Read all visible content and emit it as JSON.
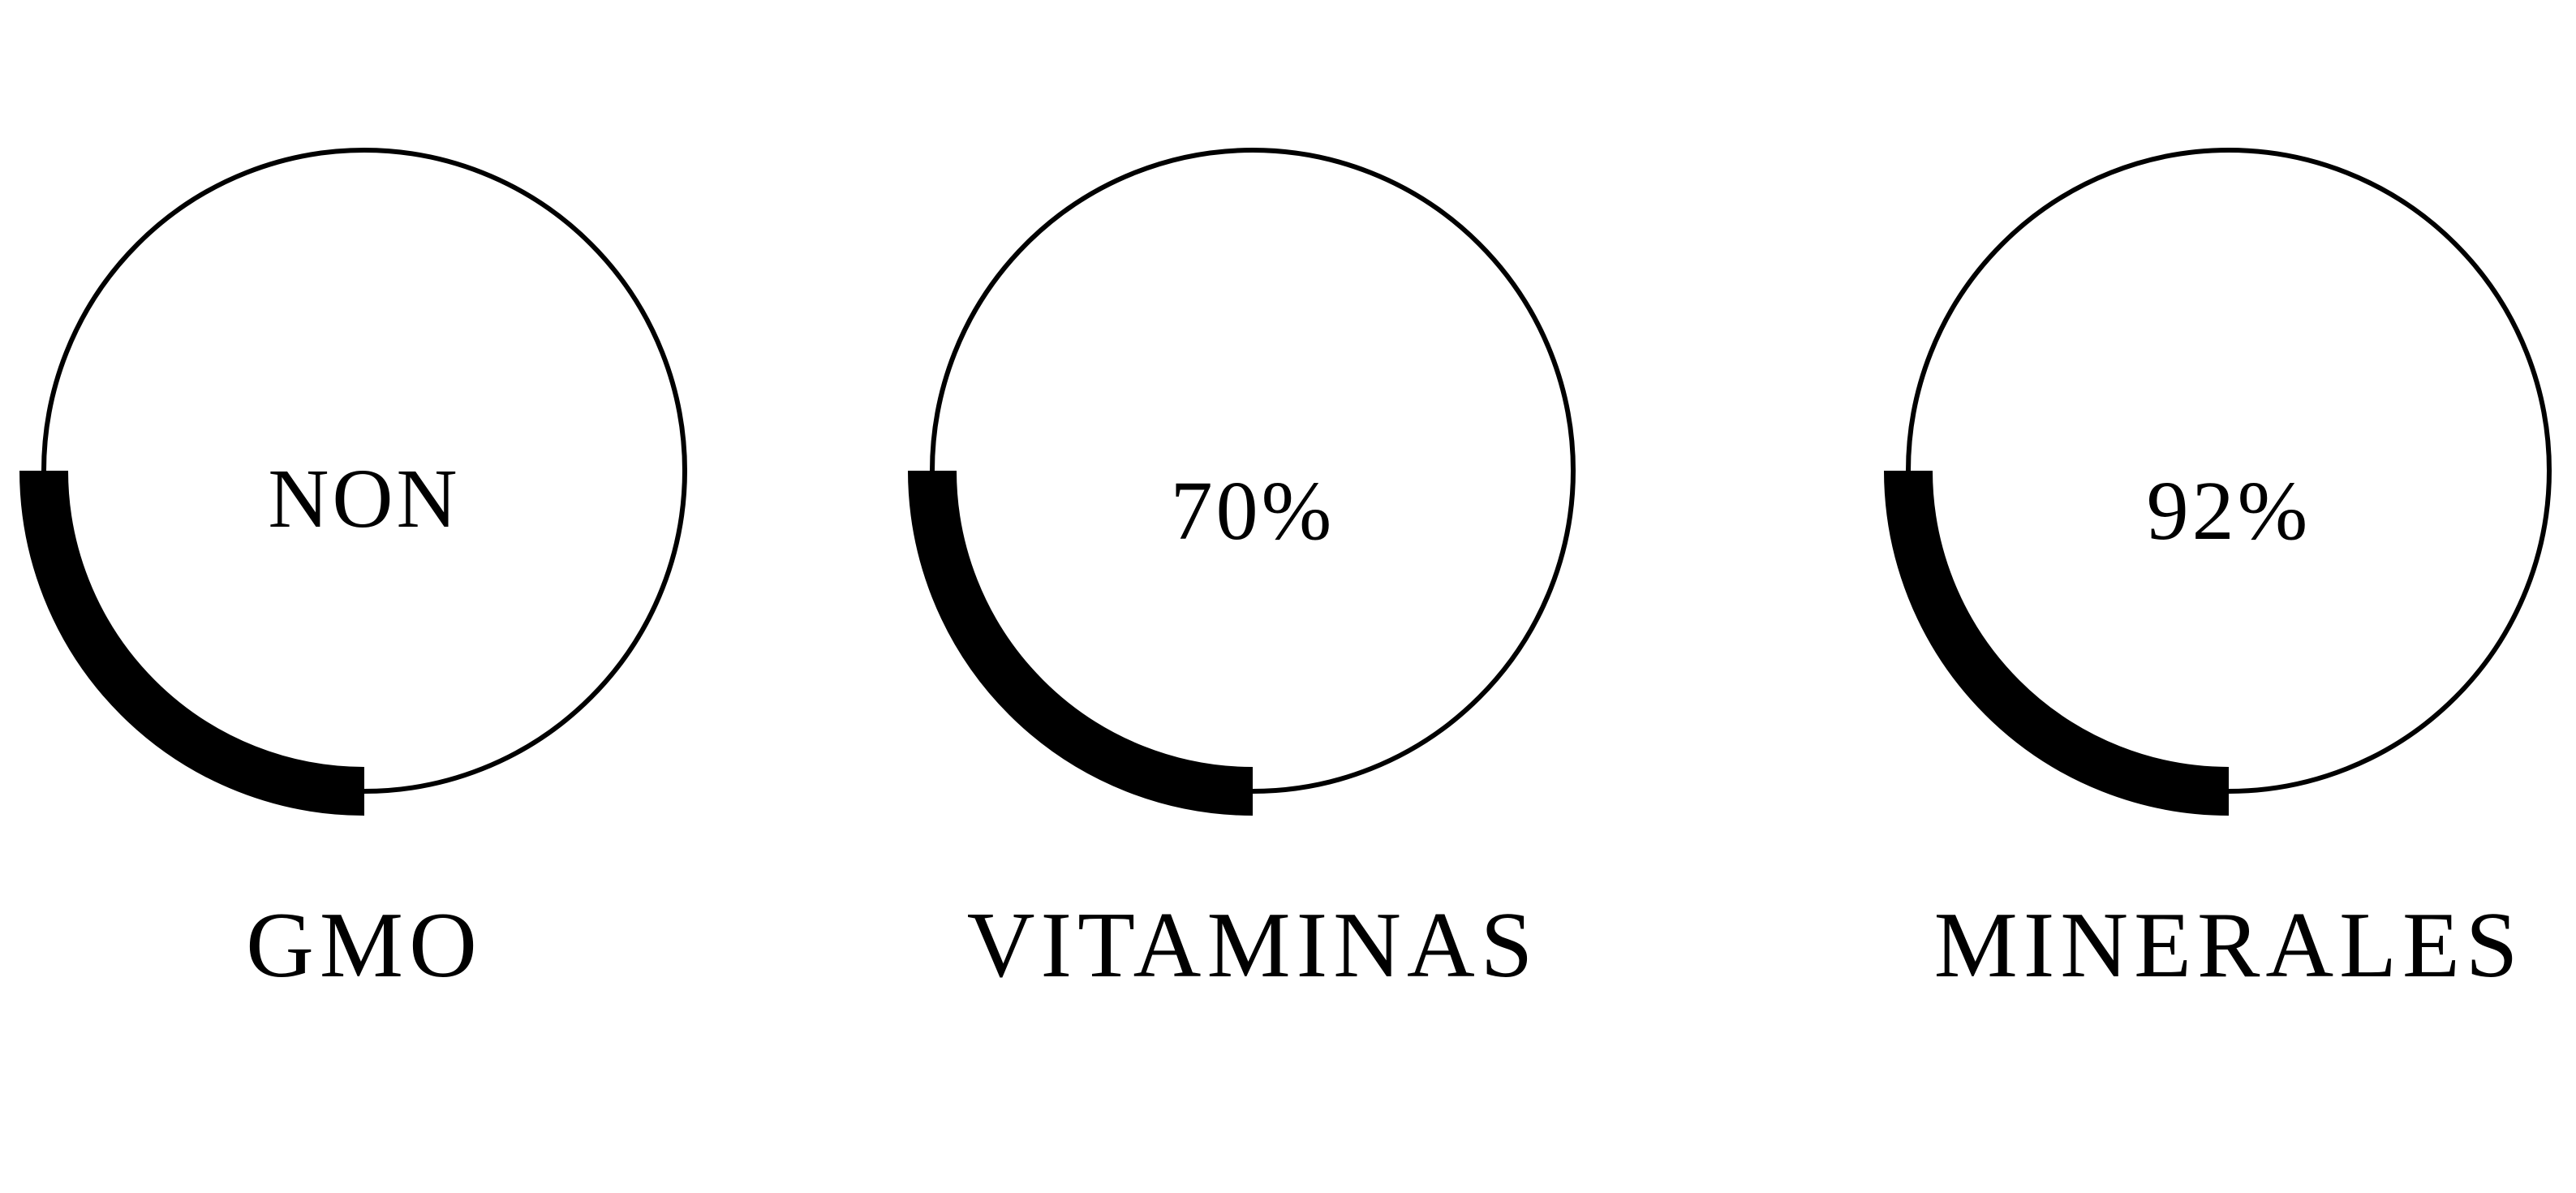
{
  "badges": [
    {
      "center": "NON",
      "caption": "GMO"
    },
    {
      "center": "70%",
      "caption": "VITAMINAS"
    },
    {
      "center": "92%",
      "caption": "MINERALES"
    }
  ],
  "colors": {
    "ink": "#000000",
    "background": "#ffffff"
  }
}
